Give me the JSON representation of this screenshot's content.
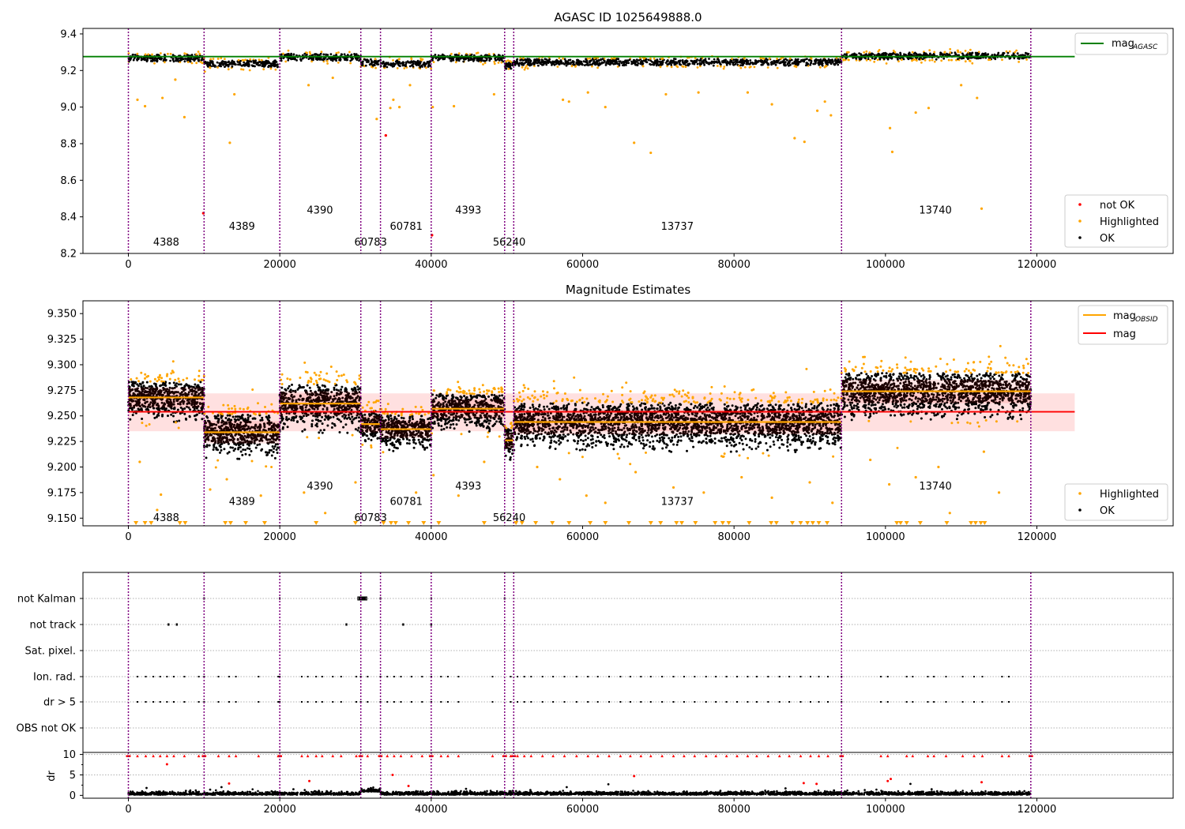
{
  "chart_data": [
    {
      "type": "scatter",
      "title": "AGASC ID 1025649888.0",
      "xlim": [
        -6000,
        138000
      ],
      "ylim": [
        8.2,
        9.43
      ],
      "x_ticks": [
        0,
        20000,
        40000,
        60000,
        80000,
        100000,
        120000
      ],
      "y_ticks": [
        8.2,
        8.4,
        8.6,
        8.8,
        9.0,
        9.2,
        9.4
      ],
      "y_tick_labels": [
        "8.2",
        "8.4",
        "8.6",
        "8.8",
        "9.0",
        "9.2",
        "9.4"
      ],
      "obsid_boundaries": [
        0,
        10000,
        20000,
        30700,
        33300,
        40000,
        49700,
        50900,
        94200,
        119200
      ],
      "obsids": [
        {
          "label": "4388",
          "x": 5000,
          "y": 8.243,
          "start": 0,
          "end": 10000,
          "level": 9.268
        },
        {
          "label": "4389",
          "x": 15000,
          "y": 8.33,
          "start": 10000,
          "end": 20000,
          "level": 9.236
        },
        {
          "label": "4390",
          "x": 25300,
          "y": 8.417,
          "start": 20000,
          "end": 30700,
          "level": 9.272
        },
        {
          "label": "60783",
          "x": 32000,
          "y": 8.243,
          "start": 30700,
          "end": 33300,
          "level": 9.243
        },
        {
          "label": "60781",
          "x": 36700,
          "y": 8.33,
          "start": 33300,
          "end": 40000,
          "level": 9.236
        },
        {
          "label": "4393",
          "x": 44900,
          "y": 8.417,
          "start": 40000,
          "end": 49700,
          "level": 9.268
        },
        {
          "label": "56240",
          "x": 50300,
          "y": 8.243,
          "start": 49700,
          "end": 50900,
          "level": 9.228
        },
        {
          "label": "13737",
          "x": 72500,
          "y": 8.33,
          "start": 50900,
          "end": 94200,
          "level": 9.245
        },
        {
          "label": "13740",
          "x": 106600,
          "y": 8.417,
          "start": 94200,
          "end": 119200,
          "level": 9.279
        }
      ],
      "series": [
        {
          "name": "mag_AGASC",
          "y": 9.276,
          "color": "#008000",
          "x_range": [
            -6000,
            125000
          ]
        }
      ],
      "legend_top": {
        "position": "upper right",
        "entries": [
          {
            "label": "mag",
            "subscript": "AGASC",
            "color": "#008000"
          }
        ]
      },
      "legend_bottom": {
        "position": "lower right",
        "entries": [
          {
            "label": "not OK",
            "color": "#ff0000"
          },
          {
            "label": "Highlighted",
            "color": "#ffa500"
          },
          {
            "label": "OK",
            "color": "#000000"
          }
        ]
      },
      "not_ok_points": [
        [
          9900,
          8.42
        ],
        [
          34000,
          8.845
        ],
        [
          40100,
          8.3
        ]
      ],
      "highlighted_outliers": [
        [
          1200,
          9.04
        ],
        [
          2200,
          9.005
        ],
        [
          4500,
          9.05
        ],
        [
          6200,
          9.15
        ],
        [
          7400,
          8.945
        ],
        [
          13400,
          8.805
        ],
        [
          14000,
          9.07
        ],
        [
          23800,
          9.12
        ],
        [
          27000,
          9.16
        ],
        [
          32800,
          8.935
        ],
        [
          34600,
          8.995
        ],
        [
          35000,
          9.04
        ],
        [
          35800,
          9.0
        ],
        [
          37200,
          9.12
        ],
        [
          40200,
          9.0
        ],
        [
          43000,
          9.005
        ],
        [
          48300,
          9.07
        ],
        [
          57400,
          9.04
        ],
        [
          58200,
          9.03
        ],
        [
          60700,
          9.08
        ],
        [
          63000,
          9.0
        ],
        [
          66800,
          8.805
        ],
        [
          69000,
          8.75
        ],
        [
          71000,
          9.07
        ],
        [
          75300,
          9.08
        ],
        [
          81800,
          9.08
        ],
        [
          85000,
          9.015
        ],
        [
          88000,
          8.83
        ],
        [
          89300,
          8.81
        ],
        [
          91000,
          8.98
        ],
        [
          92000,
          9.03
        ],
        [
          92800,
          8.955
        ],
        [
          100600,
          8.885
        ],
        [
          100900,
          8.755
        ],
        [
          104000,
          8.97
        ],
        [
          105700,
          8.995
        ],
        [
          110000,
          9.12
        ],
        [
          112100,
          9.05
        ],
        [
          112700,
          8.445
        ]
      ]
    },
    {
      "type": "scatter",
      "title": "Magnitude Estimates",
      "xlim": [
        -6000,
        138000
      ],
      "ylim": [
        9.1425,
        9.3625
      ],
      "x_ticks": [
        0,
        20000,
        40000,
        60000,
        80000,
        100000,
        120000
      ],
      "y_ticks": [
        9.15,
        9.175,
        9.2,
        9.225,
        9.25,
        9.275,
        9.3,
        9.325,
        9.35
      ],
      "y_tick_labels": [
        "9.150",
        "9.175",
        "9.200",
        "9.225",
        "9.250",
        "9.275",
        "9.300",
        "9.325",
        "9.350"
      ],
      "mag": 9.254,
      "mag_band": [
        9.235,
        9.272
      ],
      "obsids": [
        {
          "label": "4388",
          "x": 5000,
          "y": 9.147,
          "start": 0,
          "end": 10000,
          "level": 9.268,
          "spread": 0.018
        },
        {
          "label": "4389",
          "x": 15000,
          "y": 9.163,
          "start": 10000,
          "end": 20000,
          "level": 9.234,
          "spread": 0.02
        },
        {
          "label": "4390",
          "x": 25300,
          "y": 9.178,
          "start": 20000,
          "end": 30700,
          "level": 9.262,
          "spread": 0.022
        },
        {
          "label": "60783",
          "x": 32000,
          "y": 9.147,
          "start": 30700,
          "end": 33300,
          "level": 9.242,
          "spread": 0.015
        },
        {
          "label": "60781",
          "x": 36700,
          "y": 9.163,
          "start": 33300,
          "end": 40000,
          "level": 9.237,
          "spread": 0.016
        },
        {
          "label": "4393",
          "x": 44900,
          "y": 9.178,
          "start": 40000,
          "end": 49700,
          "level": 9.257,
          "spread": 0.017
        },
        {
          "label": "56240",
          "x": 50300,
          "y": 9.147,
          "start": 49700,
          "end": 50900,
          "level": 9.226,
          "spread": 0.014
        },
        {
          "label": "13737",
          "x": 72500,
          "y": 9.163,
          "start": 50900,
          "end": 94200,
          "level": 9.244,
          "spread": 0.022
        },
        {
          "label": "13740",
          "x": 106600,
          "y": 9.178,
          "start": 94200,
          "end": 119200,
          "level": 9.274,
          "spread": 0.021
        }
      ],
      "legend_top": {
        "position": "upper right",
        "entries": [
          {
            "label": "mag",
            "subscript": "OBSID",
            "color": "#ffa500"
          },
          {
            "label": "mag",
            "subscript": "",
            "color": "#ff0000"
          }
        ]
      },
      "legend_bottom": {
        "position": "lower right",
        "entries": [
          {
            "label": "Highlighted",
            "color": "#ffa500"
          },
          {
            "label": "OK",
            "color": "#000000"
          }
        ]
      },
      "highlighted_outliers": [
        [
          1500,
          9.205
        ],
        [
          3800,
          9.158
        ],
        [
          4300,
          9.173
        ],
        [
          10800,
          9.178
        ],
        [
          13000,
          9.188
        ],
        [
          17500,
          9.172
        ],
        [
          23200,
          9.175
        ],
        [
          26000,
          9.155
        ],
        [
          30000,
          9.185
        ],
        [
          38000,
          9.175
        ],
        [
          40300,
          9.192
        ],
        [
          43600,
          9.172
        ],
        [
          47000,
          9.205
        ],
        [
          54000,
          9.2
        ],
        [
          57000,
          9.188
        ],
        [
          60500,
          9.172
        ],
        [
          63000,
          9.165
        ],
        [
          67000,
          9.195
        ],
        [
          72000,
          9.18
        ],
        [
          76000,
          9.175
        ],
        [
          81000,
          9.19
        ],
        [
          85000,
          9.17
        ],
        [
          90000,
          9.185
        ],
        [
          93000,
          9.165
        ],
        [
          98000,
          9.207
        ],
        [
          100500,
          9.183
        ],
        [
          104000,
          9.19
        ],
        [
          107000,
          9.2
        ],
        [
          108500,
          9.155
        ],
        [
          113000,
          9.215
        ],
        [
          115000,
          9.175
        ]
      ]
    },
    {
      "type": "scatter",
      "title": "",
      "xlim": [
        -6000,
        138000
      ],
      "x_ticks": [
        0,
        20000,
        40000,
        60000,
        80000,
        100000,
        120000
      ],
      "flag_rows": [
        "not Kalman",
        "not track",
        "Sat. pixel.",
        "Ion. rad.",
        "dr > 5",
        "OBS not OK"
      ],
      "dr_ylim": [
        -0.7,
        10.5
      ],
      "dr_ticks": [
        0,
        5,
        10
      ],
      "dr_label": "dr",
      "not_kalman_x": [
        10000,
        20000,
        30500,
        30700,
        30900,
        31100,
        31300,
        33300,
        40000,
        49700
      ],
      "not_track_x": [
        5300,
        6400,
        28800,
        36300,
        40000
      ],
      "ion_rad_x": [
        1200,
        2300,
        3300,
        4200,
        5100,
        6000,
        7400,
        9300,
        10000,
        11900,
        13300,
        14200,
        17200,
        19800,
        20000,
        22900,
        23700,
        24800,
        25600,
        27000,
        28100,
        30100,
        30700,
        31600,
        33300,
        34200,
        35100,
        36000,
        37400,
        38800,
        40000,
        41300,
        42200,
        43600,
        48100,
        50500,
        51400,
        52300,
        53200,
        54700,
        56100,
        57600,
        59200,
        60700,
        62000,
        63500,
        65000,
        66300,
        67700,
        69000,
        70500,
        72000,
        73400,
        74800,
        76300,
        77600,
        79000,
        80400,
        81800,
        83000,
        84500,
        86000,
        87300,
        88800,
        90100,
        91200,
        92400,
        94200,
        99400,
        100300,
        102800,
        103600,
        105600,
        106400,
        108000,
        110200,
        111700,
        112800,
        115400,
        116300
      ],
      "dr_outliers_red": [
        [
          5100,
          7.6
        ],
        [
          13300,
          2.9
        ],
        [
          23900,
          3.5
        ],
        [
          34900,
          5.0
        ],
        [
          37000,
          2.3
        ],
        [
          66800,
          4.7
        ],
        [
          89200,
          3.0
        ],
        [
          90900,
          2.8
        ],
        [
          100300,
          3.5
        ],
        [
          100700,
          4.0
        ],
        [
          112700,
          3.2
        ]
      ]
    }
  ]
}
